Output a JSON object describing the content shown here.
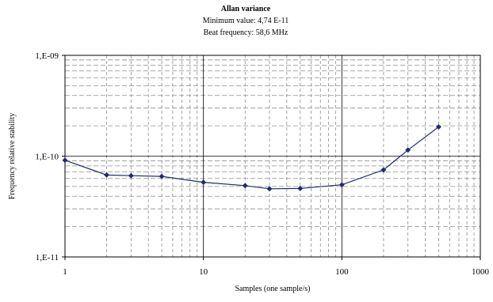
{
  "chart_data": {
    "type": "line",
    "title": "Allan variance",
    "subtitle_lines": [
      "Minimum value: 4,74 E-11",
      "Beat frequency:  58,6 MHz"
    ],
    "xlabel": "Samples (one sample/s)",
    "ylabel": "Frequency relative stability",
    "x_scale": "log",
    "y_scale": "log",
    "xlim": [
      1,
      1000
    ],
    "ylim": [
      1e-11,
      1e-09
    ],
    "x_ticks": [
      {
        "value": 1,
        "label": "1"
      },
      {
        "value": 10,
        "label": "10"
      },
      {
        "value": 100,
        "label": "100"
      },
      {
        "value": 1000,
        "label": "1000"
      }
    ],
    "y_ticks": [
      {
        "value": 1e-09,
        "label": "1,E-09"
      },
      {
        "value": 1e-10,
        "label": "1,E-10"
      },
      {
        "value": 1e-11,
        "label": "1,E-11"
      }
    ],
    "grid": "major solid, minor dashed",
    "legend": "none",
    "series": [
      {
        "color": "#1f2a6e",
        "marker": "diamond",
        "x": [
          1,
          2,
          3,
          5,
          10,
          20,
          30,
          50,
          100,
          200,
          300,
          500
        ],
        "y": [
          9.1e-11,
          6.5e-11,
          6.4e-11,
          6.3e-11,
          5.5e-11,
          5.1e-11,
          4.74e-11,
          4.78e-11,
          5.2e-11,
          7.3e-11,
          1.15e-10,
          1.95e-10
        ]
      }
    ]
  }
}
